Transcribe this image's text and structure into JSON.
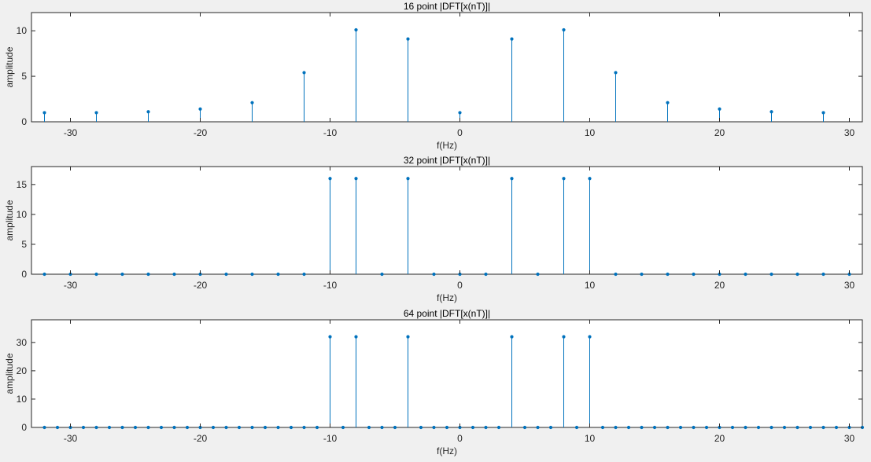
{
  "window": {
    "background": "#f0f0f0",
    "axes_background": "#ffffff",
    "series_color": "#0072bd"
  },
  "chart_data": [
    {
      "type": "stem",
      "title": "16 point |DFT[x(nT)]|",
      "xlabel": "f(Hz)",
      "ylabel": "amplitude",
      "xlim": [
        -33,
        31
      ],
      "ylim": [
        0,
        12
      ],
      "xticks": [
        -30,
        -20,
        -10,
        0,
        10,
        20,
        30
      ],
      "yticks": [
        0,
        5,
        10
      ],
      "grid": false,
      "x": [
        -32,
        -28,
        -24,
        -20,
        -16,
        -12,
        -8,
        -4,
        0,
        4,
        8,
        12,
        16,
        20,
        24,
        28
      ],
      "y": [
        1.0,
        1.0,
        1.1,
        1.4,
        2.1,
        5.4,
        10.1,
        9.1,
        1.0,
        9.1,
        10.1,
        5.4,
        2.1,
        1.4,
        1.1,
        1.0
      ]
    },
    {
      "type": "stem",
      "title": "32 point |DFT[x(nT)]|",
      "xlabel": "f(Hz)",
      "ylabel": "amplitude",
      "xlim": [
        -33,
        31
      ],
      "ylim": [
        0,
        18
      ],
      "xticks": [
        -30,
        -20,
        -10,
        0,
        10,
        20,
        30
      ],
      "yticks": [
        0,
        5,
        10,
        15
      ],
      "grid": false,
      "x": [
        -32,
        -30,
        -28,
        -26,
        -24,
        -22,
        -20,
        -18,
        -16,
        -14,
        -12,
        -10,
        -8,
        -6,
        -4,
        -2,
        0,
        2,
        4,
        6,
        8,
        10,
        12,
        14,
        16,
        18,
        20,
        22,
        24,
        26,
        28,
        30
      ],
      "y": [
        0,
        0,
        0,
        0,
        0,
        0,
        0,
        0,
        0,
        0,
        0,
        16,
        16,
        0,
        16,
        0,
        0,
        0,
        16,
        0,
        16,
        16,
        0,
        0,
        0,
        0,
        0,
        0,
        0,
        0,
        0,
        0
      ]
    },
    {
      "type": "stem",
      "title": "64 point |DFT[x(nT)]|",
      "xlabel": "f(Hz)",
      "ylabel": "amplitude",
      "xlim": [
        -33,
        31
      ],
      "ylim": [
        0,
        38
      ],
      "xticks": [
        -30,
        -20,
        -10,
        0,
        10,
        20,
        30
      ],
      "yticks": [
        0,
        10,
        20,
        30
      ],
      "grid": false,
      "x": [
        -32,
        -31,
        -30,
        -29,
        -28,
        -27,
        -26,
        -25,
        -24,
        -23,
        -22,
        -21,
        -20,
        -19,
        -18,
        -17,
        -16,
        -15,
        -14,
        -13,
        -12,
        -11,
        -10,
        -9,
        -8,
        -7,
        -6,
        -5,
        -4,
        -3,
        -2,
        -1,
        0,
        1,
        2,
        3,
        4,
        5,
        6,
        7,
        8,
        9,
        10,
        11,
        12,
        13,
        14,
        15,
        16,
        17,
        18,
        19,
        20,
        21,
        22,
        23,
        24,
        25,
        26,
        27,
        28,
        29,
        30,
        31
      ],
      "y": [
        0,
        0,
        0,
        0,
        0,
        0,
        0,
        0,
        0,
        0,
        0,
        0,
        0,
        0,
        0,
        0,
        0,
        0,
        0,
        0,
        0,
        0,
        32,
        0,
        32,
        0,
        0,
        0,
        32,
        0,
        0,
        0,
        0,
        0,
        0,
        0,
        32,
        0,
        0,
        0,
        32,
        0,
        32,
        0,
        0,
        0,
        0,
        0,
        0,
        0,
        0,
        0,
        0,
        0,
        0,
        0,
        0,
        0,
        0,
        0,
        0,
        0,
        0,
        0
      ]
    }
  ]
}
